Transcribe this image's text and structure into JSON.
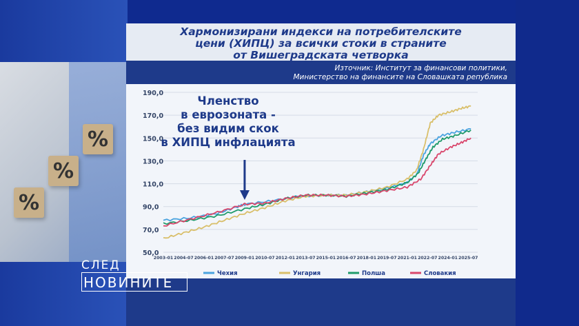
{
  "title_lines": [
    "Хармонизирани индекси на потребителските",
    "цени (ХИПЦ) за всички стоки в страните",
    "от Вишеградската четворка"
  ],
  "source_lines": [
    "Източник: Институт за финансови политики,",
    "Министерство на финансите на Словашката република"
  ],
  "annotation_lines": [
    "Членство",
    "в еврозоната -",
    "без видим скок",
    "в ХИПЦ инфлацията"
  ],
  "logo": {
    "top": "СЛЕД",
    "bottom": "НОВИНИТЕ"
  },
  "cubes": [
    "%",
    "%",
    "%"
  ],
  "chart_data": {
    "type": "line",
    "ylim": [
      50,
      190
    ],
    "yticks": [
      "190,0",
      "170,0",
      "150,0",
      "130,0",
      "110,0",
      "90,0",
      "70,0",
      "50,0"
    ],
    "ytick_values": [
      190,
      170,
      150,
      130,
      110,
      90,
      70,
      50
    ],
    "xlim": [
      2003.0,
      2026.2
    ],
    "xticks": [
      "2003-01",
      "2004-07",
      "2006-01",
      "2007-07",
      "2009-01",
      "2010-07",
      "2012-01",
      "2013-07",
      "2015-01",
      "2016-07",
      "2018-01",
      "2019-07",
      "2021-01",
      "2022-07",
      "2024-01",
      "2025-07"
    ],
    "xtick_values": [
      2003.0,
      2004.5,
      2006.0,
      2007.5,
      2009.0,
      2010.5,
      2012.0,
      2013.5,
      2015.0,
      2016.5,
      2018.0,
      2019.5,
      2021.0,
      2022.5,
      2024.0,
      2025.5
    ],
    "grid": true,
    "legend_position": "bottom",
    "annotation_arrow_x": 2009.0,
    "series": [
      {
        "name": "Чехия",
        "color": "#4aa3df",
        "x": [
          2003.0,
          2005,
          2007,
          2008.5,
          2009.0,
          2011,
          2013,
          2015,
          2016.5,
          2018,
          2019.5,
          2021,
          2021.7,
          2022.2,
          2022.7,
          2023.5,
          2024.5,
          2025.7
        ],
        "y": [
          78,
          80,
          84,
          90,
          92,
          95,
          99,
          100,
          100,
          103,
          106,
          111,
          118,
          135,
          145,
          152,
          155,
          158
        ]
      },
      {
        "name": "Унгария",
        "color": "#d9bf6a",
        "x": [
          2003.0,
          2004.5,
          2006,
          2007.5,
          2009,
          2010.5,
          2012,
          2013.5,
          2015,
          2016.5,
          2018,
          2019.5,
          2021,
          2021.7,
          2022.2,
          2022.7,
          2023.3,
          2024.2,
          2025.0,
          2025.7
        ],
        "y": [
          62,
          67,
          72,
          78,
          84,
          89,
          95,
          99,
          100,
          100,
          103,
          107,
          114,
          122,
          140,
          163,
          170,
          173,
          176,
          178
        ]
      },
      {
        "name": "Полша",
        "color": "#1f9a6a",
        "x": [
          2003.0,
          2005,
          2007,
          2009,
          2010.5,
          2012,
          2013.5,
          2015,
          2016.5,
          2018,
          2019.5,
          2021,
          2021.8,
          2022.4,
          2022.9,
          2023.6,
          2024.5,
          2025.7
        ],
        "y": [
          75,
          78,
          82,
          88,
          92,
          97,
          100,
          100,
          99,
          102,
          105,
          111,
          119,
          132,
          142,
          149,
          152,
          157
        ]
      },
      {
        "name": "Словакия",
        "color": "#d9476c",
        "x": [
          2003.0,
          2005,
          2007,
          2009,
          2010.5,
          2012,
          2013.5,
          2015,
          2016.5,
          2018,
          2019.5,
          2021,
          2022.0,
          2022.7,
          2023.3,
          2024.2,
          2025.0,
          2025.7
        ],
        "y": [
          73,
          79,
          85,
          92,
          93,
          97,
          100,
          100,
          99,
          101,
          104,
          107,
          114,
          126,
          136,
          142,
          146,
          150
        ]
      }
    ]
  }
}
